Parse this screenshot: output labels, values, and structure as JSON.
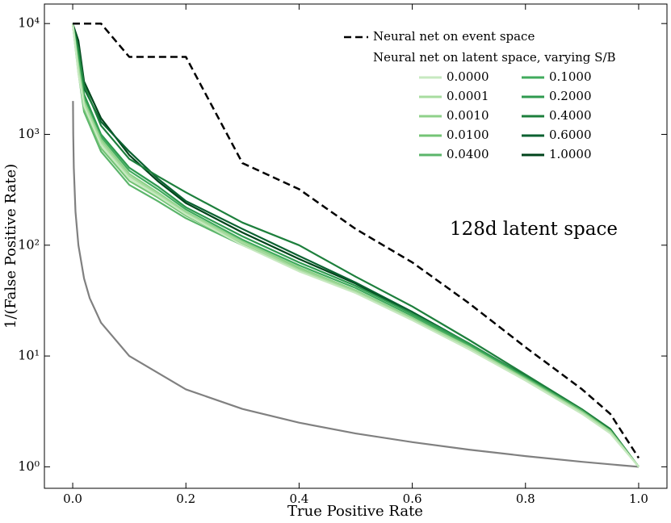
{
  "chart_data": {
    "type": "line",
    "xlabel": "True Positive Rate",
    "ylabel": "1/(False Positive Rate)",
    "annotation": "128d latent space",
    "legend_title": "Neural net on latent space, varying S/B",
    "legend": "upper right",
    "yscale": "log",
    "xlim": [
      -0.05,
      1.05
    ],
    "ylim": [
      0.64,
      15000
    ],
    "xticks": [
      {
        "value": 0,
        "label": "0.0"
      },
      0.2,
      0.4,
      0.6,
      0.8,
      {
        "value": 1,
        "label": "1.0"
      }
    ],
    "yticks": [
      {
        "value": 1,
        "label": "10⁰"
      },
      {
        "value": 10,
        "label": "10¹"
      },
      {
        "value": 100,
        "label": "10²"
      },
      {
        "value": 1000,
        "label": "10³"
      },
      {
        "value": 10000,
        "label": "10⁴"
      }
    ],
    "x": [
      0,
      0.01,
      0.02,
      0.05,
      0.1,
      0.15,
      0.2,
      0.3,
      0.4,
      0.5,
      0.6,
      0.7,
      0.8,
      0.9,
      0.95,
      1.0
    ],
    "series": [
      {
        "name": "Neural net on event space",
        "color": "#000000",
        "linestyle": "dashed",
        "values": [
          10000,
          10000,
          10000,
          10000,
          5000,
          5000,
          5000,
          550,
          320,
          140,
          70,
          30,
          12,
          5,
          3,
          1.2
        ]
      },
      {
        "name": "0.0000",
        "color": "#c7e9c0",
        "values": [
          10000,
          3500,
          1800,
          800,
          400,
          280,
          190,
          100,
          58,
          37,
          21,
          11.5,
          6,
          3,
          2,
          1
        ]
      },
      {
        "name": "0.0001",
        "color": "#a8dca0",
        "values": [
          10000,
          3800,
          1900,
          850,
          420,
          290,
          195,
          105,
          60,
          38,
          21.5,
          12,
          6.1,
          3.1,
          2.05,
          1
        ]
      },
      {
        "name": "0.0010",
        "color": "#8fd18a",
        "values": [
          10000,
          4200,
          2000,
          900,
          440,
          300,
          200,
          108,
          63,
          39,
          22,
          12,
          6.2,
          3.1,
          2.1,
          1
        ]
      },
      {
        "name": "0.0100",
        "color": "#74c476",
        "values": [
          10000,
          4000,
          1700,
          750,
          380,
          270,
          185,
          102,
          62,
          39,
          22,
          12.2,
          6.2,
          3.1,
          2.1,
          1
        ]
      },
      {
        "name": "0.0400",
        "color": "#5bb56a",
        "values": [
          10000,
          3600,
          1600,
          700,
          350,
          250,
          175,
          100,
          60,
          38,
          22,
          12,
          6.3,
          3.2,
          2.1,
          1
        ]
      },
      {
        "name": "0.1000",
        "color": "#41ab5d",
        "values": [
          10000,
          4500,
          2100,
          950,
          470,
          320,
          210,
          112,
          66,
          41,
          23,
          12.5,
          6.4,
          3.2,
          2.1,
          1
        ]
      },
      {
        "name": "0.2000",
        "color": "#2f9a4f",
        "values": [
          10000,
          5000,
          2300,
          1000,
          500,
          340,
          220,
          120,
          70,
          43,
          24,
          13,
          6.5,
          3.2,
          2.1,
          1
        ]
      },
      {
        "name": "0.4000",
        "color": "#1d7f3c",
        "values": [
          10000,
          6000,
          2800,
          1200,
          600,
          420,
          300,
          160,
          100,
          52,
          28,
          14,
          6.8,
          3.3,
          2.2,
          1
        ]
      },
      {
        "name": "0.6000",
        "color": "#0a6130",
        "values": [
          10000,
          5500,
          2600,
          1300,
          700,
          400,
          250,
          140,
          80,
          46,
          25,
          13,
          6.6,
          3.2,
          2.1,
          1
        ]
      },
      {
        "name": "1.0000",
        "color": "#00441b",
        "values": [
          10000,
          7000,
          3000,
          1400,
          650,
          380,
          240,
          130,
          75,
          45,
          24,
          13,
          6.5,
          3.2,
          2.1,
          1
        ]
      },
      {
        "color": "#808080",
        "x": [
          0.0005,
          0.001,
          0.002,
          0.005,
          0.01,
          0.02,
          0.03,
          0.05,
          0.1,
          0.2,
          0.3,
          0.4,
          0.5,
          0.6,
          0.7,
          0.8,
          0.9,
          1.0
        ],
        "values": [
          2000,
          1000,
          500,
          200,
          100,
          50,
          33.3,
          20,
          10,
          5,
          3.33,
          2.5,
          2,
          1.67,
          1.43,
          1.25,
          1.11,
          1
        ]
      }
    ]
  }
}
